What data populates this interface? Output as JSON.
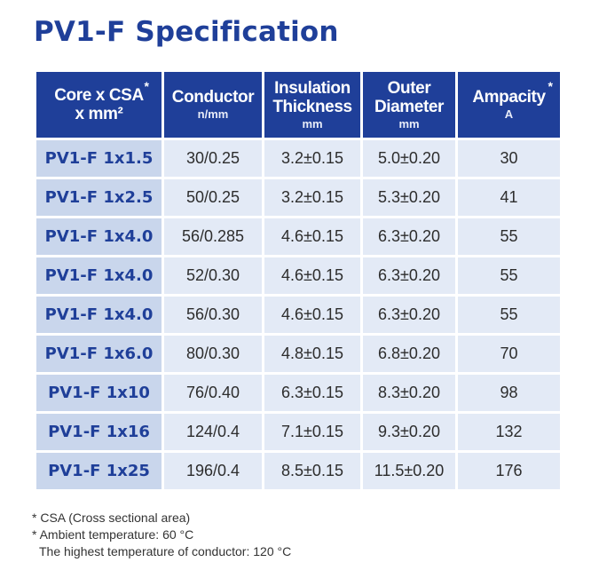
{
  "title": "PV1-F Specification",
  "headers": [
    {
      "line1": "Core x CSA",
      "line2": "x mm²",
      "unit": "",
      "star": "*"
    },
    {
      "line1": "Conductor",
      "line2": "",
      "unit": "n/mm",
      "star": ""
    },
    {
      "line1": "Insulation",
      "line2": "Thickness",
      "unit": "mm",
      "star": ""
    },
    {
      "line1": "Outer",
      "line2": "Diameter",
      "unit": "mm",
      "star": ""
    },
    {
      "line1": "Ampacity",
      "line2": "",
      "unit": "A",
      "star": "*"
    }
  ],
  "rows": [
    [
      "PV1-F 1x1.5",
      "30/0.25",
      "3.2±0.15",
      "5.0±0.20",
      "30"
    ],
    [
      "PV1-F 1x2.5",
      "50/0.25",
      "3.2±0.15",
      "5.3±0.20",
      "41"
    ],
    [
      "PV1-F 1x4.0",
      "56/0.285",
      "4.6±0.15",
      "6.3±0.20",
      "55"
    ],
    [
      "PV1-F 1x4.0",
      "52/0.30",
      "4.6±0.15",
      "6.3±0.20",
      "55"
    ],
    [
      "PV1-F 1x4.0",
      "56/0.30",
      "4.6±0.15",
      "6.3±0.20",
      "55"
    ],
    [
      "PV1-F 1x6.0",
      "80/0.30",
      "4.8±0.15",
      "6.8±0.20",
      "70"
    ],
    [
      "PV1-F 1x10",
      "76/0.40",
      "6.3±0.15",
      "8.3±0.20",
      "98"
    ],
    [
      "PV1-F 1x16",
      "124/0.4",
      "7.1±0.15",
      "9.3±0.20",
      "132"
    ],
    [
      "PV1-F 1x25",
      "196/0.4",
      "8.5±0.15",
      "11.5±0.20",
      "176"
    ]
  ],
  "notes": [
    "* CSA (Cross sectional area)",
    "* Ambient temperature: 60 °C",
    "The highest temperature of conductor: 120 °C"
  ]
}
